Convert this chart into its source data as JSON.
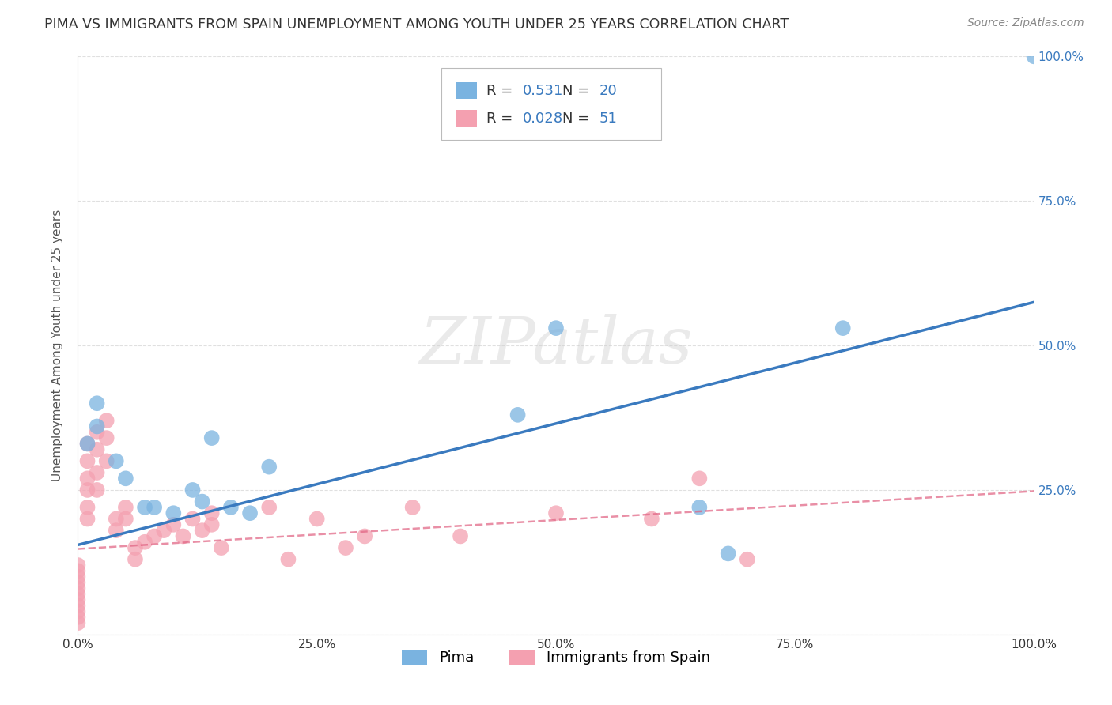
{
  "title": "PIMA VS IMMIGRANTS FROM SPAIN UNEMPLOYMENT AMONG YOUTH UNDER 25 YEARS CORRELATION CHART",
  "source": "Source: ZipAtlas.com",
  "ylabel": "Unemployment Among Youth under 25 years",
  "xlabel": "",
  "xlim": [
    0,
    1.0
  ],
  "ylim": [
    0,
    1.0
  ],
  "xtick_vals": [
    0.0,
    0.25,
    0.5,
    0.75,
    1.0
  ],
  "xtick_labels": [
    "0.0%",
    "25.0%",
    "50.0%",
    "75.0%",
    "100.0%"
  ],
  "ytick_right_vals": [
    1.0,
    0.75,
    0.5,
    0.25
  ],
  "ytick_right_labels": [
    "100.0%",
    "75.0%",
    "50.0%",
    "25.0%"
  ],
  "background_color": "#ffffff",
  "grid_color": "#e0e0e0",
  "watermark_text": "ZIPatlas",
  "pima": {
    "color": "#7ab3e0",
    "scatter_color": "#7ab3e0",
    "line_color": "#3a7abf",
    "R": "0.531",
    "N": "20",
    "scatter_x": [
      0.01,
      0.02,
      0.04,
      0.05,
      0.07,
      0.08,
      0.1,
      0.12,
      0.13,
      0.16,
      0.2,
      0.14,
      0.46,
      0.65,
      0.68,
      0.8,
      1.0,
      0.5,
      0.02,
      0.18
    ],
    "scatter_y": [
      0.33,
      0.36,
      0.3,
      0.27,
      0.22,
      0.22,
      0.21,
      0.25,
      0.23,
      0.22,
      0.29,
      0.34,
      0.38,
      0.22,
      0.14,
      0.53,
      1.0,
      0.53,
      0.4,
      0.21
    ],
    "trend_x": [
      0.0,
      1.0
    ],
    "trend_y": [
      0.155,
      0.575
    ]
  },
  "spain": {
    "color": "#f4a0b0",
    "scatter_color": "#f4a0b0",
    "line_color": "#e06080",
    "R": "0.028",
    "N": "51",
    "scatter_x": [
      0.0,
      0.0,
      0.0,
      0.0,
      0.0,
      0.0,
      0.0,
      0.0,
      0.0,
      0.0,
      0.0,
      0.01,
      0.01,
      0.01,
      0.01,
      0.01,
      0.01,
      0.02,
      0.02,
      0.02,
      0.02,
      0.03,
      0.03,
      0.03,
      0.04,
      0.04,
      0.05,
      0.05,
      0.06,
      0.06,
      0.07,
      0.08,
      0.09,
      0.1,
      0.11,
      0.12,
      0.13,
      0.14,
      0.14,
      0.15,
      0.2,
      0.22,
      0.25,
      0.28,
      0.3,
      0.35,
      0.4,
      0.5,
      0.6,
      0.65,
      0.7
    ],
    "scatter_y": [
      0.12,
      0.11,
      0.1,
      0.09,
      0.08,
      0.07,
      0.06,
      0.05,
      0.04,
      0.03,
      0.02,
      0.33,
      0.3,
      0.27,
      0.25,
      0.22,
      0.2,
      0.35,
      0.32,
      0.28,
      0.25,
      0.37,
      0.34,
      0.3,
      0.2,
      0.18,
      0.22,
      0.2,
      0.15,
      0.13,
      0.16,
      0.17,
      0.18,
      0.19,
      0.17,
      0.2,
      0.18,
      0.21,
      0.19,
      0.15,
      0.22,
      0.13,
      0.2,
      0.15,
      0.17,
      0.22,
      0.17,
      0.21,
      0.2,
      0.27,
      0.13
    ],
    "trend_x": [
      0.0,
      1.0
    ],
    "trend_y": [
      0.148,
      0.248
    ]
  },
  "legend_label_pima": "Pima",
  "legend_label_spain": "Immigrants from Spain",
  "title_fontsize": 12.5,
  "source_fontsize": 10,
  "axis_label_fontsize": 11,
  "tick_fontsize": 11,
  "legend_fontsize": 13,
  "right_tick_color": "#3a7abf"
}
